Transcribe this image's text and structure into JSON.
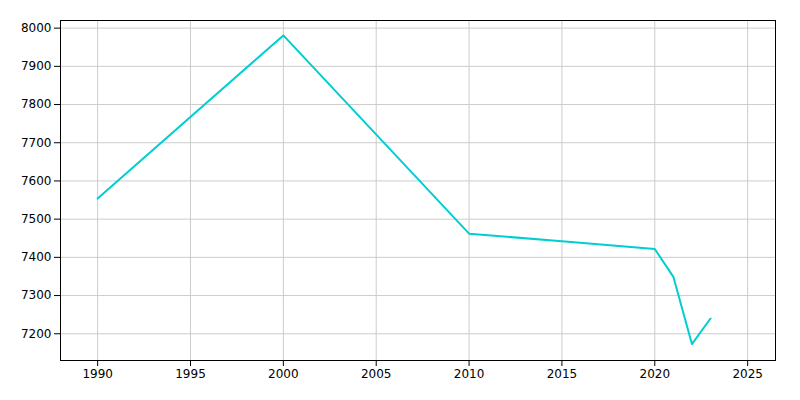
{
  "chart_data": {
    "type": "line",
    "x": [
      1990,
      2000,
      2010,
      2015,
      2020,
      2021,
      2022,
      2023
    ],
    "values": [
      7554,
      7981,
      7462,
      7442,
      7422,
      7349,
      7173,
      7240
    ],
    "color": "#00CED1",
    "xlim": [
      1988,
      2026.5
    ],
    "ylim": [
      7130,
      8020
    ],
    "xticks": [
      1990,
      1995,
      2000,
      2005,
      2010,
      2015,
      2020,
      2025
    ],
    "yticks": [
      7200,
      7300,
      7400,
      7500,
      7600,
      7700,
      7800,
      7900,
      8000
    ],
    "grid": true
  }
}
